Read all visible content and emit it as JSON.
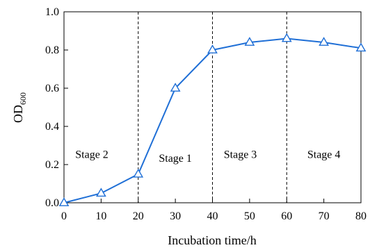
{
  "chart_data": {
    "type": "line",
    "xlabel": "Incubation time/h",
    "ylabel_main": "OD",
    "ylabel_sub": "600",
    "xlim": [
      0,
      80
    ],
    "ylim": [
      0,
      1.0
    ],
    "x_ticks": [
      "0",
      "10",
      "20",
      "30",
      "40",
      "50",
      "60",
      "70",
      "80"
    ],
    "y_ticks": [
      "0.0",
      "0.2",
      "0.4",
      "0.6",
      "0.8",
      "1.0"
    ],
    "x": [
      0,
      10,
      20,
      30,
      40,
      50,
      60,
      70,
      80
    ],
    "series": [
      {
        "values": [
          0.0,
          0.05,
          0.15,
          0.6,
          0.8,
          0.84,
          0.86,
          0.84,
          0.81
        ]
      }
    ],
    "vlines": [
      20,
      40,
      60
    ],
    "annotations": [
      {
        "text": "Stage 2",
        "x": 7.5,
        "y": 0.235
      },
      {
        "text": "Stage 1",
        "x": 30.0,
        "y": 0.215
      },
      {
        "text": "Stage 3",
        "x": 47.5,
        "y": 0.235
      },
      {
        "text": "Stage 4",
        "x": 70.0,
        "y": 0.235
      }
    ],
    "grid": false,
    "color": "#1f6fd6"
  }
}
